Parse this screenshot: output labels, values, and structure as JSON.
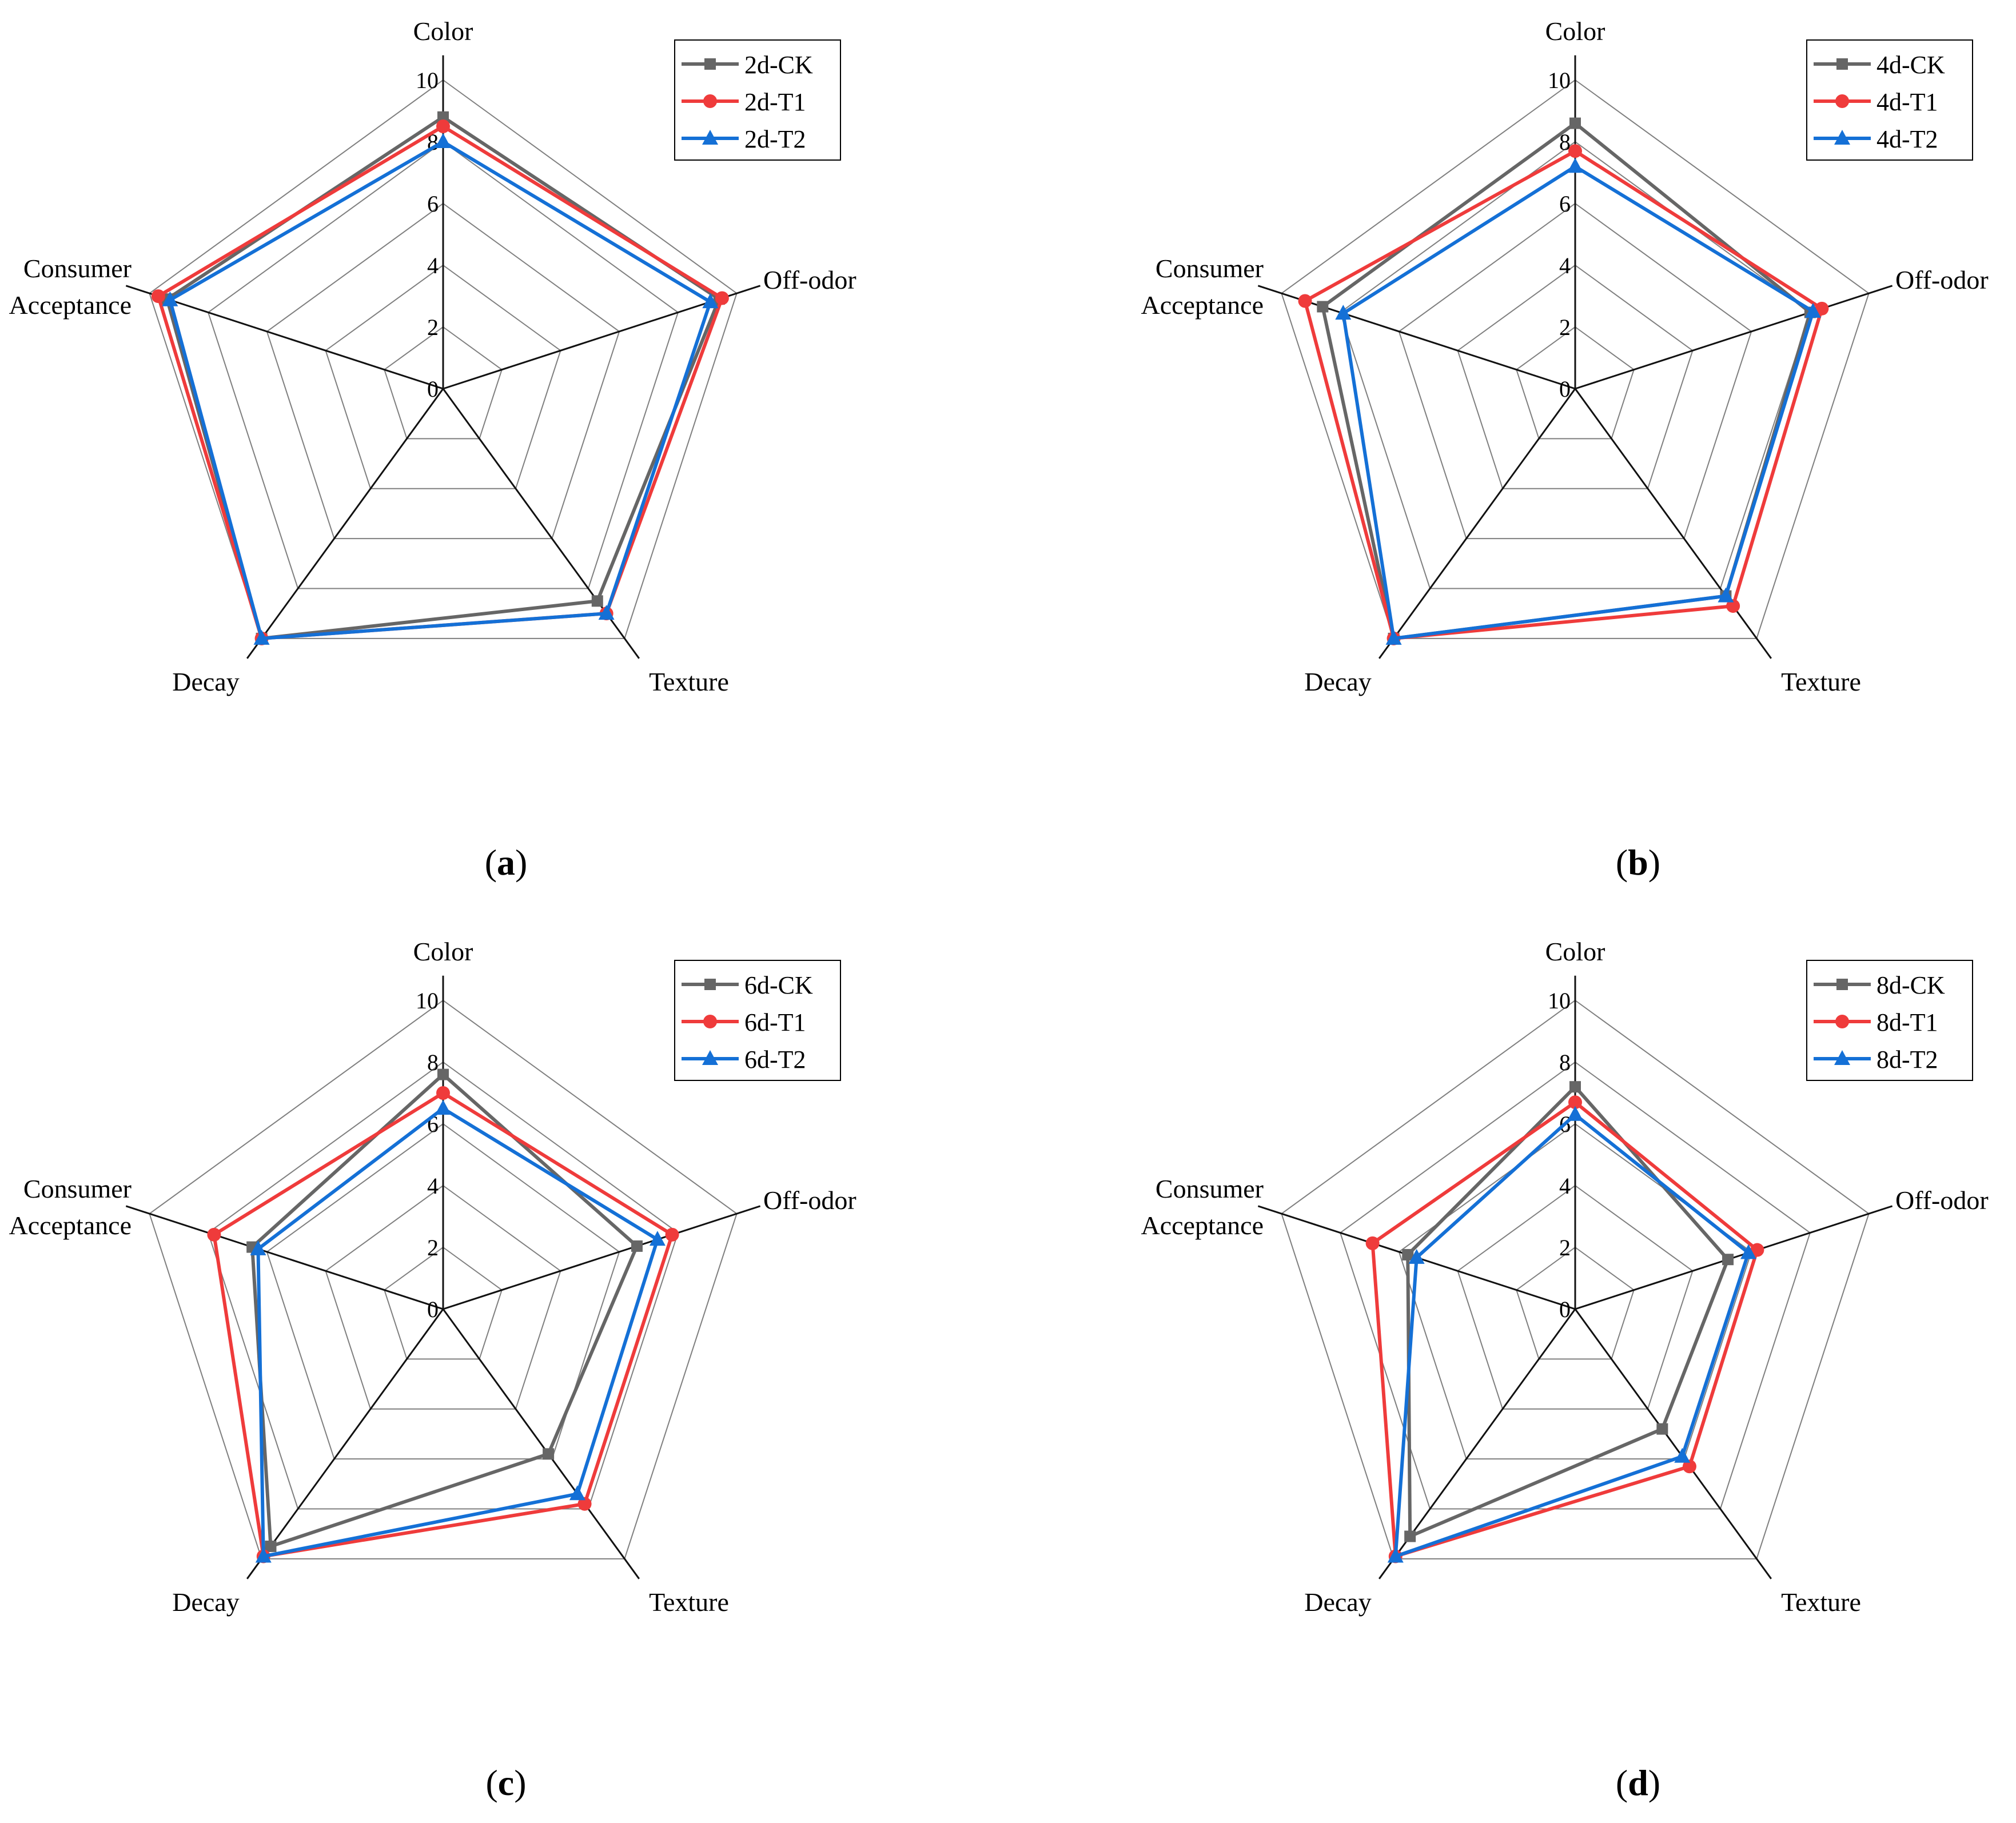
{
  "chart_data": [
    {
      "type": "radar",
      "panel_label": "a",
      "axes": [
        "Color",
        "Off-odor",
        "Texture",
        "Decay",
        "Consumer Acceptance"
      ],
      "axis_label_lines": [
        [
          "Color"
        ],
        [
          "Off-odor"
        ],
        [
          "Texture"
        ],
        [
          "Decay"
        ],
        [
          "Consumer",
          "Acceptance"
        ]
      ],
      "rlim": [
        0,
        10
      ],
      "ticks": [
        0,
        2,
        4,
        6,
        8,
        10
      ],
      "legend_position": "top-right",
      "series": [
        {
          "name": "2d-CK",
          "color": "#666666",
          "marker": "square",
          "values": [
            8.8,
            9.4,
            8.5,
            10.0,
            9.4
          ]
        },
        {
          "name": "2d-T1",
          "color": "#ef3b3b",
          "marker": "circle",
          "values": [
            8.5,
            9.5,
            9.0,
            10.0,
            9.7
          ]
        },
        {
          "name": "2d-T2",
          "color": "#1470d6",
          "marker": "triangle",
          "values": [
            8.0,
            9.1,
            9.0,
            10.0,
            9.3
          ]
        }
      ]
    },
    {
      "type": "radar",
      "panel_label": "b",
      "axes": [
        "Color",
        "Off-odor",
        "Texture",
        "Decay",
        "Consumer Acceptance"
      ],
      "axis_label_lines": [
        [
          "Color"
        ],
        [
          "Off-odor"
        ],
        [
          "Texture"
        ],
        [
          "Decay"
        ],
        [
          "Consumer",
          "Acceptance"
        ]
      ],
      "rlim": [
        0,
        10
      ],
      "ticks": [
        0,
        2,
        4,
        6,
        8,
        10
      ],
      "legend_position": "top-right",
      "series": [
        {
          "name": "4d-CK",
          "color": "#666666",
          "marker": "square",
          "values": [
            8.6,
            8.0,
            8.3,
            10.0,
            8.6
          ]
        },
        {
          "name": "4d-T1",
          "color": "#ef3b3b",
          "marker": "circle",
          "values": [
            7.7,
            8.4,
            8.7,
            10.0,
            9.2
          ]
        },
        {
          "name": "4d-T2",
          "color": "#1470d6",
          "marker": "triangle",
          "values": [
            7.2,
            8.1,
            8.3,
            10.0,
            7.9
          ]
        }
      ]
    },
    {
      "type": "radar",
      "panel_label": "c",
      "axes": [
        "Color",
        "Off-odor",
        "Texture",
        "Decay",
        "Consumer Acceptance"
      ],
      "axis_label_lines": [
        [
          "Color"
        ],
        [
          "Off-odor"
        ],
        [
          "Texture"
        ],
        [
          "Decay"
        ],
        [
          "Consumer",
          "Acceptance"
        ]
      ],
      "rlim": [
        0,
        10
      ],
      "ticks": [
        0,
        2,
        4,
        6,
        8,
        10
      ],
      "legend_position": "top-right",
      "series": [
        {
          "name": "6d-CK",
          "color": "#666666",
          "marker": "square",
          "values": [
            7.6,
            6.6,
            5.8,
            9.5,
            6.5
          ]
        },
        {
          "name": "6d-T1",
          "color": "#ef3b3b",
          "marker": "circle",
          "values": [
            7.0,
            7.8,
            7.8,
            9.9,
            7.8
          ]
        },
        {
          "name": "6d-T2",
          "color": "#1470d6",
          "marker": "triangle",
          "values": [
            6.5,
            7.3,
            7.4,
            9.9,
            6.3
          ]
        }
      ]
    },
    {
      "type": "radar",
      "panel_label": "d",
      "axes": [
        "Color",
        "Off-odor",
        "Texture",
        "Decay",
        "Consumer Acceptance"
      ],
      "axis_label_lines": [
        [
          "Color"
        ],
        [
          "Off-odor"
        ],
        [
          "Texture"
        ],
        [
          "Decay"
        ],
        [
          "Consumer",
          "Acceptance"
        ]
      ],
      "rlim": [
        0,
        10
      ],
      "ticks": [
        0,
        2,
        4,
        6,
        8,
        10
      ],
      "legend_position": "top-right",
      "series": [
        {
          "name": "8d-CK",
          "color": "#666666",
          "marker": "square",
          "values": [
            7.2,
            5.2,
            4.8,
            9.1,
            5.7
          ]
        },
        {
          "name": "8d-T1",
          "color": "#ef3b3b",
          "marker": "circle",
          "values": [
            6.7,
            6.2,
            6.3,
            9.9,
            6.9
          ]
        },
        {
          "name": "8d-T2",
          "color": "#1470d6",
          "marker": "triangle",
          "values": [
            6.3,
            5.9,
            5.9,
            9.9,
            5.4
          ]
        }
      ]
    }
  ]
}
